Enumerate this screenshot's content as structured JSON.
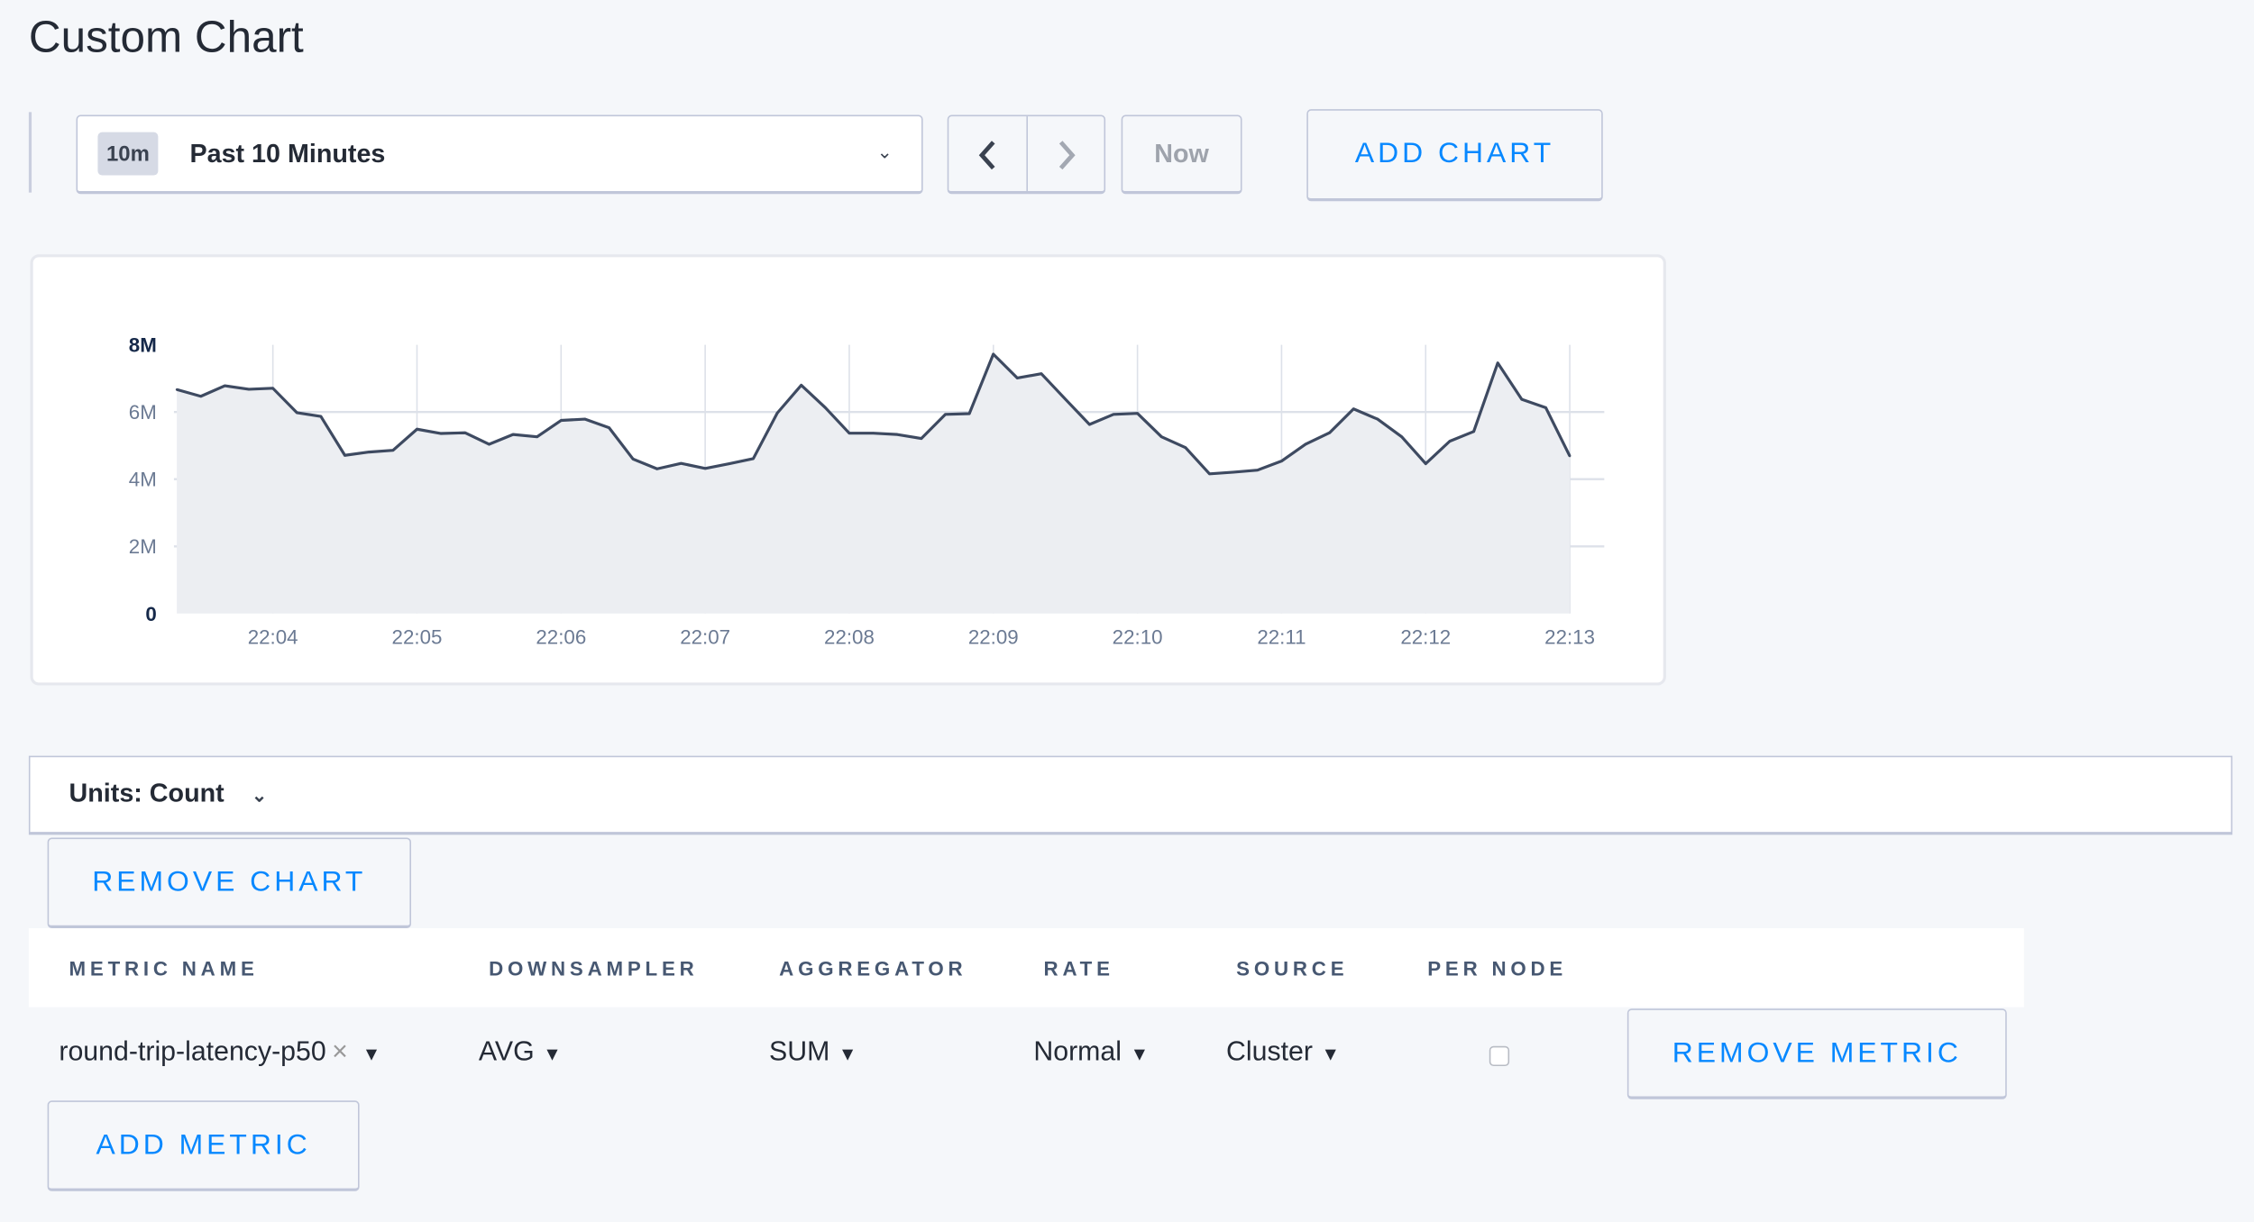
{
  "page": {
    "title": "Custom Chart"
  },
  "time_selector": {
    "badge": "10m",
    "label": "Past 10 Minutes",
    "prev_icon": "chevron-left-icon",
    "next_icon": "chevron-right-icon",
    "now_label": "Now"
  },
  "toolbar": {
    "add_chart_label": "ADD CHART"
  },
  "chart_data": {
    "type": "area",
    "x": [
      "22:03:20",
      "22:03:30",
      "22:03:40",
      "22:03:50",
      "22:04:00",
      "22:04:10",
      "22:04:20",
      "22:04:30",
      "22:04:40",
      "22:04:50",
      "22:05:00",
      "22:05:10",
      "22:05:20",
      "22:05:30",
      "22:05:40",
      "22:05:50",
      "22:06:00",
      "22:06:10",
      "22:06:20",
      "22:06:30",
      "22:06:40",
      "22:06:50",
      "22:07:00",
      "22:07:10",
      "22:07:20",
      "22:07:30",
      "22:07:40",
      "22:07:50",
      "22:08:00",
      "22:08:10",
      "22:08:20",
      "22:08:30",
      "22:08:40",
      "22:08:50",
      "22:09:00",
      "22:09:10",
      "22:09:20",
      "22:09:30",
      "22:09:40",
      "22:09:50",
      "22:10:00",
      "22:10:10",
      "22:10:20",
      "22:10:30",
      "22:10:40",
      "22:10:50",
      "22:11:00",
      "22:11:10",
      "22:11:20",
      "22:11:30",
      "22:11:40",
      "22:11:50",
      "22:12:00",
      "22:12:10",
      "22:12:20",
      "22:12:30",
      "22:12:40",
      "22:12:50",
      "22:13:00"
    ],
    "series": [
      {
        "values": [
          6.67,
          6.47,
          6.78,
          6.68,
          6.71,
          5.98,
          5.87,
          4.71,
          4.81,
          4.86,
          5.49,
          5.36,
          5.38,
          5.04,
          5.33,
          5.26,
          5.75,
          5.79,
          5.53,
          4.6,
          4.31,
          4.47,
          4.32,
          4.46,
          4.61,
          5.97,
          6.8,
          6.13,
          5.37,
          5.37,
          5.33,
          5.21,
          5.93,
          5.95,
          7.72,
          7.01,
          7.14,
          6.38,
          5.63,
          5.93,
          5.96,
          5.26,
          4.94,
          4.16,
          4.21,
          4.27,
          4.54,
          5.04,
          5.38,
          6.09,
          5.79,
          5.26,
          4.46,
          5.13,
          5.42,
          7.46,
          6.38,
          6.13,
          4.69
        ]
      }
    ],
    "value_unit": "M",
    "ylim": [
      0,
      8
    ],
    "y_ticks": [
      "0",
      "2M",
      "4M",
      "6M",
      "8M"
    ],
    "x_ticks": [
      "22:04",
      "22:05",
      "22:06",
      "22:07",
      "22:08",
      "22:09",
      "22:10",
      "22:11",
      "22:12",
      "22:13"
    ],
    "grid": true,
    "line_color": "#3e4a61",
    "fill_color": "#eceef2"
  },
  "units": {
    "label": "Units: Count"
  },
  "chart_controls": {
    "remove_chart_label": "REMOVE CHART"
  },
  "metrics_table": {
    "headers": [
      "METRIC NAME",
      "DOWNSAMPLER",
      "AGGREGATOR",
      "RATE",
      "SOURCE",
      "PER NODE"
    ],
    "rows": [
      {
        "metric_name": "round-trip-latency-p50",
        "downsampler": "AVG",
        "aggregator": "SUM",
        "rate": "Normal",
        "source": "Cluster",
        "per_node": false,
        "remove_label": "REMOVE METRIC"
      }
    ],
    "add_metric_label": "ADD METRIC"
  },
  "colors": {
    "accent": "#0788ff",
    "background": "#f5f7fa"
  }
}
